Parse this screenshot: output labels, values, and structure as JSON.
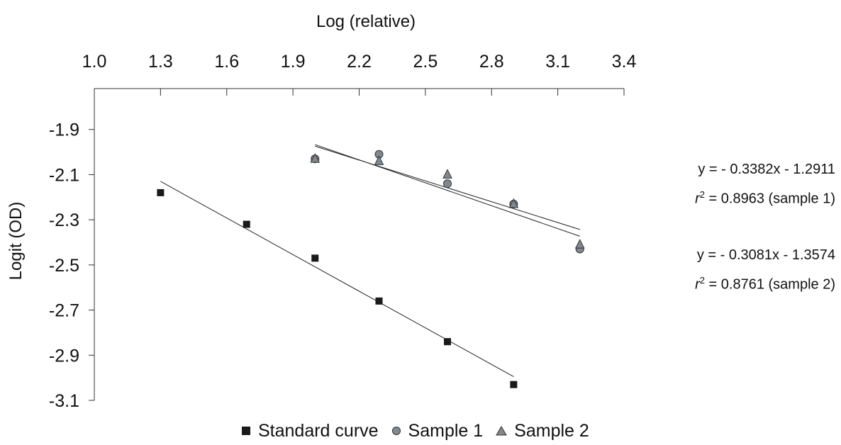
{
  "chart_data": {
    "type": "scatter",
    "title": "",
    "xlabel": "Log (relative)",
    "ylabel": "Logit (OD)",
    "xlim": [
      1.0,
      3.4
    ],
    "ylim": [
      -3.1,
      -1.7
    ],
    "x_ticks": [
      "1.0",
      "1.3",
      "1.6",
      "1.9",
      "2.2",
      "2.5",
      "2.8",
      "3.1",
      "3.4"
    ],
    "y_ticks": [
      "-1.9",
      "-2.1",
      "-2.3",
      "-2.5",
      "-2.7",
      "-2.9",
      "-3.1"
    ],
    "x_axis_position": "top",
    "grid": false,
    "legend_position": "bottom",
    "series": [
      {
        "name": "Standard curve",
        "marker": "square",
        "color": "#1a1a1a",
        "points": [
          [
            1.3,
            -2.18
          ],
          [
            1.69,
            -2.32
          ],
          [
            2.0,
            -2.47
          ],
          [
            2.29,
            -2.66
          ],
          [
            2.6,
            -2.84
          ],
          [
            2.9,
            -3.03
          ]
        ],
        "trendline": [
          [
            1.3,
            -2.13
          ],
          [
            2.9,
            -2.995
          ]
        ]
      },
      {
        "name": "Sample 1",
        "marker": "circle",
        "color": "#808890",
        "points": [
          [
            2.0,
            -2.03
          ],
          [
            2.29,
            -2.01
          ],
          [
            2.6,
            -2.14
          ],
          [
            2.9,
            -2.23
          ],
          [
            3.2,
            -2.43
          ]
        ],
        "trendline": [
          [
            2.0,
            -1.967
          ],
          [
            3.2,
            -2.373
          ]
        ]
      },
      {
        "name": "Sample 2",
        "marker": "triangle",
        "color": "#808890",
        "points": [
          [
            2.0,
            -2.03
          ],
          [
            2.29,
            -2.04
          ],
          [
            2.6,
            -2.1
          ],
          [
            2.9,
            -2.23
          ],
          [
            3.2,
            -2.41
          ]
        ],
        "trendline": [
          [
            2.0,
            -1.974
          ],
          [
            3.2,
            -2.343
          ]
        ]
      }
    ],
    "annotations": [
      {
        "equation": "y = - 0.3382x - 1.2911",
        "r2_symbol": "r",
        "r2_exp": "2",
        "r2_text": " = 0.8963 (sample 1)"
      },
      {
        "equation": "y = - 0.3081x - 1.3574",
        "r2_symbol": "r",
        "r2_exp": "2",
        "r2_text": " =  0.8761 (sample 2)"
      }
    ]
  }
}
